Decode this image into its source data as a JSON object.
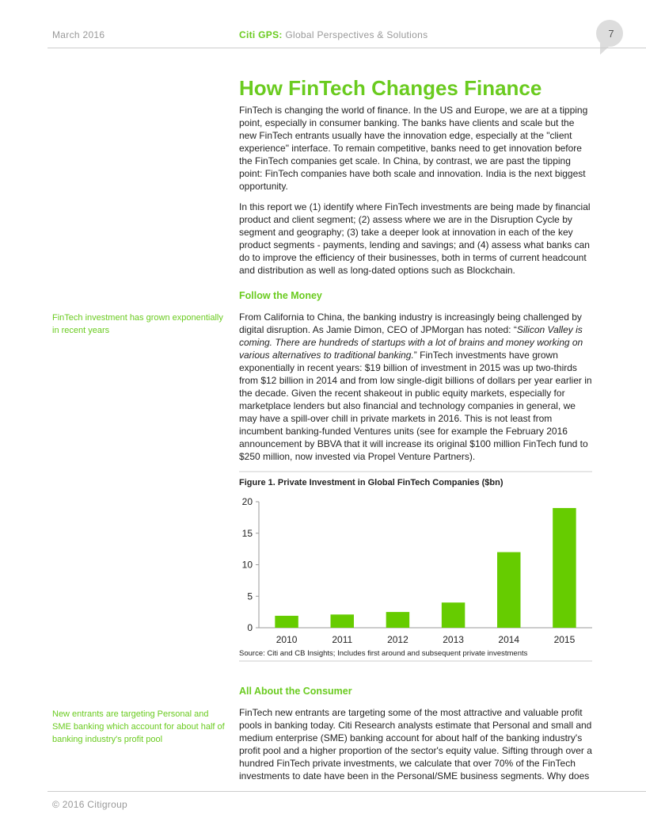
{
  "header": {
    "date": "March 2016",
    "brand": "Citi GPS:",
    "tagline": "Global Perspectives & Solutions",
    "page": "7"
  },
  "title": "How FinTech Changes Finance",
  "intro": [
    "FinTech is changing the world of finance. In the US and Europe, we are at a tipping point, especially in consumer banking. The banks have clients and scale but the new FinTech entrants usually have the innovation edge, especially at the \"client experience\" interface. To remain competitive, banks need to get innovation before the FinTech companies get scale. In China, by contrast, we are past the tipping point: FinTech companies have both scale and innovation. India is the next biggest opportunity.",
    "In this report we (1) identify where FinTech investments are being made by financial product and client segment; (2) assess where we are in the Disruption Cycle by segment and geography; (3) take a deeper look at innovation in each of the key product segments - payments, lending and savings; and (4) assess what banks can do to improve the efficiency of their businesses, both in terms of current headcount and distribution as well as long-dated options such as Blockchain."
  ],
  "sections": [
    {
      "heading": "Follow the Money",
      "sidenote": "FinTech investment has grown exponentially in recent years",
      "paragraph": [
        "From California to China, the banking industry is increasingly being challenged by digital disruption. As Jamie Dimon, CEO of JPMorgan has noted: “",
        "Silicon Valley is coming. There are hundreds of startups with a lot of brains and money working on various alternatives to traditional banking.",
        "” FinTech investments have grown exponentially in recent years: $19 billion of investment in 2015 was up two-thirds from $12 billion in 2014 and from low single-digit billions of dollars per year earlier in the decade. Given the recent shakeout in public equity markets, especially for marketplace lenders but also financial and technology companies in general, we may have a spill-over chill in private markets in 2016. This is not least from incumbent banking-funded Ventures units (see for example the February 2016 announcement by BBVA that it will increase its original $100 million FinTech fund to $250 million, now invested via Propel Venture Partners)."
      ]
    },
    {
      "heading": "All About the Consumer",
      "sidenote": "New entrants are targeting Personal and SME banking which account for about half of banking industry's profit pool",
      "paragraph": [
        "FinTech new entrants are targeting some of the most attractive and valuable profit pools in banking today. Citi Research analysts estimate that Personal and small and medium enterprise (SME) banking account for about half of the banking industry's profit pool and a higher proportion of the sector's equity value. Sifting through over a hundred FinTech private investments, we calculate that over 70% of the FinTech investments to date have been in the Personal/SME business segments. Why does"
      ]
    }
  ],
  "chart_data": {
    "type": "bar",
    "title": "Figure 1. Private Investment in Global FinTech Companies ($bn)",
    "categories": [
      "2010",
      "2011",
      "2012",
      "2013",
      "2014",
      "2015"
    ],
    "values": [
      1.9,
      2.1,
      2.5,
      4.0,
      12.0,
      19.0
    ],
    "color": "#66cc00",
    "ylim": [
      0,
      20
    ],
    "yticks": [
      0,
      5,
      10,
      15,
      20
    ],
    "grid": false,
    "source": "Source: Citi and CB Insights; Includes first around and subsequent private investments"
  },
  "footer": "© 2016 Citigroup"
}
